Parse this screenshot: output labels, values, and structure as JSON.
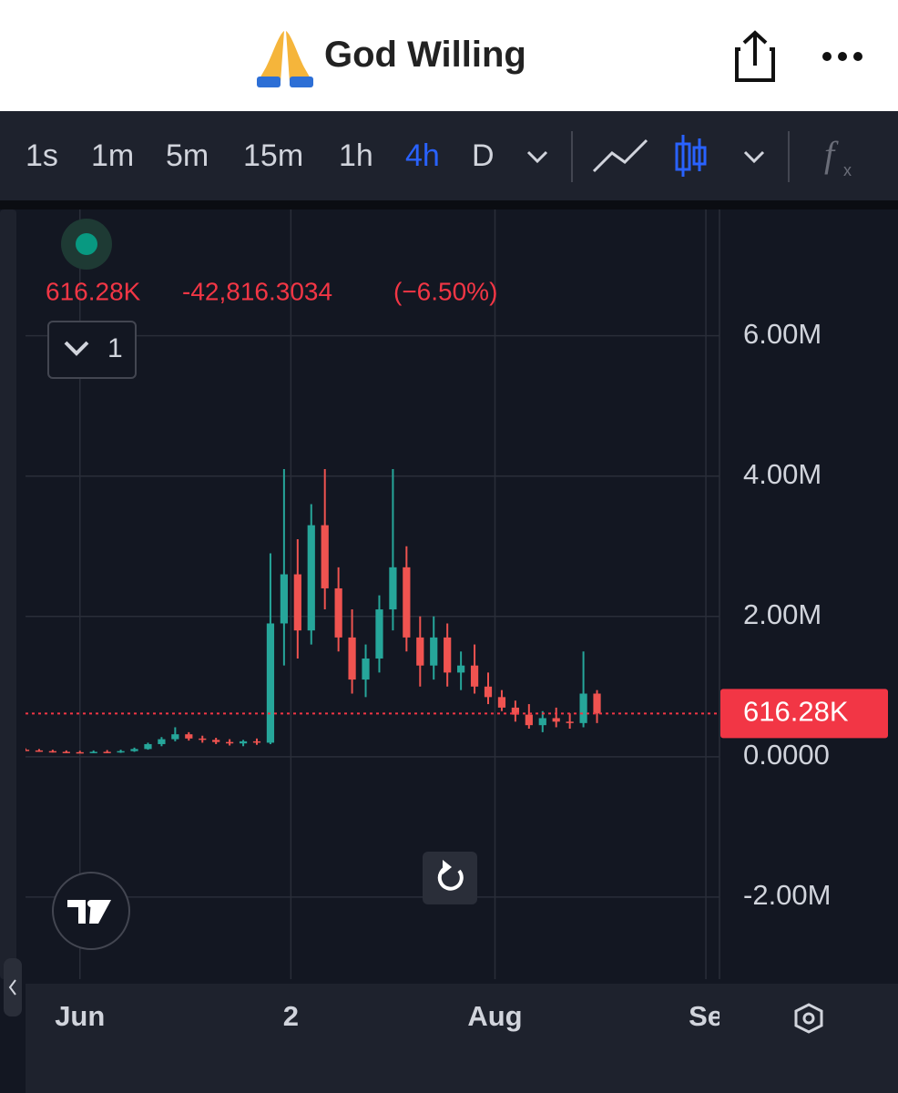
{
  "header": {
    "title": "God Willing"
  },
  "toolbar": {
    "intervals": [
      "1s",
      "1m",
      "5m",
      "15m",
      "1h",
      "4h",
      "D"
    ],
    "active_interval": 5
  },
  "legend": {
    "price": "616.28K",
    "change": "-42,816.3034",
    "change_pct": "(−6.50%)",
    "indicator_count": "1"
  },
  "chart_data": {
    "type": "candlestick",
    "x": [
      -8,
      -6,
      -4,
      -2,
      0,
      2,
      4,
      6,
      8,
      10,
      12,
      14,
      16,
      18,
      20,
      22,
      24,
      26,
      28,
      30,
      32,
      34,
      36,
      38,
      40,
      42,
      44,
      46,
      48,
      50,
      52,
      54,
      56,
      58,
      60,
      62,
      64,
      66,
      68,
      70,
      72,
      74,
      76
    ],
    "open": [
      100000,
      90000,
      80000,
      70000,
      65000,
      60000,
      70000,
      65000,
      80000,
      110000,
      180000,
      250000,
      320000,
      260000,
      240000,
      210000,
      190000,
      220000,
      200000,
      1900000,
      2600000,
      1800000,
      3300000,
      2400000,
      1700000,
      1100000,
      1400000,
      2100000,
      2700000,
      1700000,
      1300000,
      1700000,
      1200000,
      1300000,
      1000000,
      850000,
      700000,
      600000,
      450000,
      550000,
      500000,
      480000,
      900000
    ],
    "high": [
      120000,
      110000,
      100000,
      90000,
      85000,
      90000,
      95000,
      100000,
      130000,
      200000,
      280000,
      420000,
      350000,
      300000,
      270000,
      250000,
      240000,
      260000,
      2900000,
      4100000,
      3100000,
      3600000,
      4100000,
      2700000,
      2100000,
      1600000,
      2300000,
      4100000,
      3000000,
      2000000,
      2000000,
      1900000,
      1500000,
      1600000,
      1200000,
      950000,
      800000,
      750000,
      650000,
      700000,
      620000,
      1500000,
      950000
    ],
    "low": [
      80000,
      70000,
      60000,
      55000,
      50000,
      50000,
      55000,
      55000,
      70000,
      100000,
      150000,
      220000,
      230000,
      200000,
      180000,
      160000,
      150000,
      170000,
      180000,
      1300000,
      1400000,
      1600000,
      2100000,
      1500000,
      900000,
      850000,
      1200000,
      1800000,
      1500000,
      1000000,
      1100000,
      1000000,
      950000,
      900000,
      750000,
      650000,
      500000,
      400000,
      350000,
      420000,
      400000,
      420000,
      480000
    ],
    "close": [
      90000,
      80000,
      70000,
      65000,
      60000,
      70000,
      65000,
      80000,
      110000,
      180000,
      250000,
      320000,
      260000,
      240000,
      210000,
      190000,
      220000,
      200000,
      1900000,
      2600000,
      1800000,
      3300000,
      2400000,
      1700000,
      1100000,
      1400000,
      2100000,
      2700000,
      1700000,
      1300000,
      1700000,
      1200000,
      1300000,
      1000000,
      850000,
      700000,
      600000,
      450000,
      550000,
      500000,
      480000,
      900000,
      616280
    ],
    "up_color": "#26a69a",
    "down_color": "#ef5350",
    "xlim": [
      -8,
      94
    ],
    "xticks": [
      {
        "value": 0,
        "label": "Jun"
      },
      {
        "value": 31,
        "label": "2"
      },
      {
        "value": 61,
        "label": "Aug"
      },
      {
        "value": 92,
        "label": "Se"
      }
    ],
    "ylim": [
      -3170000,
      7800000
    ],
    "yticks": [
      {
        "value": -2000000,
        "label": "-2.00M"
      },
      {
        "value": 0,
        "label": "0.0000"
      },
      {
        "value": 2000000,
        "label": "2.00M"
      },
      {
        "value": 4000000,
        "label": "4.00M"
      },
      {
        "value": 6000000,
        "label": "6.00M"
      }
    ],
    "last_price": {
      "value": 616280,
      "label": "616.28K"
    },
    "grid": true
  }
}
